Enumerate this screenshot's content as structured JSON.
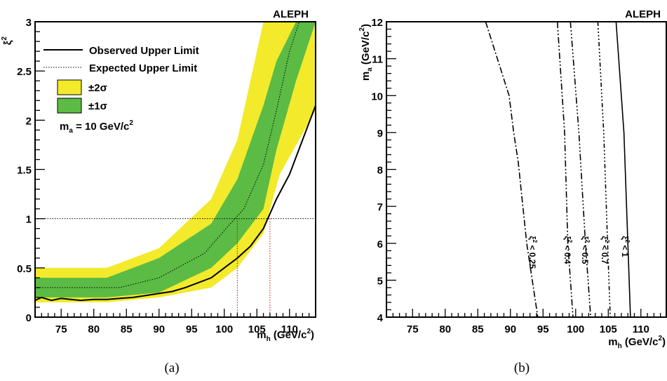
{
  "chart_data": [
    {
      "type": "area",
      "panel_caption": "(a)",
      "experiment": "ALEPH",
      "xlabel_main": "m",
      "xlabel_sub": "h",
      "xlabel_tail": " (GeV/c",
      "xlabel_sup": "2",
      "xlabel_close": ")",
      "ylabel_main": "ξ",
      "ylabel_sup": "2",
      "xlim": [
        71,
        114
      ],
      "ylim": [
        0,
        3
      ],
      "xticks": [
        75,
        80,
        85,
        90,
        95,
        100,
        105,
        110
      ],
      "yticks": [
        0,
        0.5,
        1,
        1.5,
        2,
        2.5,
        3
      ],
      "ytick_labels": [
        "0",
        "0.5",
        "1",
        "1.5",
        "2",
        "2.5",
        "3"
      ],
      "legend": {
        "observed": "Observed Upper Limit",
        "expected": "Expected Upper Limit",
        "two_sigma": "±2σ",
        "one_sigma": "±1σ",
        "mass_note_main": "m",
        "mass_note_sub": "a",
        "mass_note_tail": " = 10 GeV/c",
        "mass_note_sup": "2"
      },
      "colors": {
        "two_sigma": "#f2ea2b",
        "one_sigma": "#5bbb45",
        "observed": "#000000",
        "expected": "#000000",
        "reference": "#cc0000"
      },
      "band_2sigma": {
        "x": [
          71,
          82,
          90,
          98,
          102,
          106,
          108.5,
          114
        ],
        "upper": [
          0.5,
          0.5,
          0.7,
          1.2,
          1.8,
          3.0,
          3.0,
          3.0
        ],
        "lower": [
          0.15,
          0.15,
          0.2,
          0.3,
          0.5,
          0.85,
          1.45,
          2.1
        ]
      },
      "band_1sigma": {
        "x": [
          71,
          82,
          90,
          98,
          102,
          106,
          108,
          111,
          114
        ],
        "upper": [
          0.4,
          0.4,
          0.6,
          0.95,
          1.4,
          2.15,
          2.6,
          3.0,
          3.0
        ],
        "lower": [
          0.2,
          0.2,
          0.25,
          0.5,
          0.75,
          1.1,
          1.7,
          2.4,
          3.0
        ]
      },
      "expected_curve": {
        "x": [
          71,
          84,
          90,
          97,
          100,
          103,
          106,
          108,
          110,
          111.5
        ],
        "y": [
          0.3,
          0.3,
          0.4,
          0.65,
          0.88,
          1.1,
          1.55,
          2.1,
          2.7,
          3.0
        ]
      },
      "observed_curve": {
        "x": [
          71,
          72,
          73.5,
          75,
          76.5,
          78,
          80,
          82,
          84,
          86,
          88,
          90,
          92,
          94,
          96,
          98,
          100,
          102,
          104,
          106,
          108,
          110,
          112,
          114
        ],
        "y": [
          0.17,
          0.2,
          0.17,
          0.19,
          0.18,
          0.17,
          0.18,
          0.18,
          0.19,
          0.2,
          0.22,
          0.24,
          0.26,
          0.3,
          0.35,
          0.4,
          0.5,
          0.6,
          0.72,
          0.9,
          1.2,
          1.45,
          1.8,
          2.15
        ]
      },
      "reference_line_y": 1,
      "reference_drops_x": [
        102,
        107
      ]
    },
    {
      "type": "line",
      "panel_caption": "(b)",
      "experiment": "ALEPH",
      "xlabel_main": "m",
      "xlabel_sub": "h",
      "xlabel_tail": " (GeV/c",
      "xlabel_sup": "2",
      "xlabel_close": ")",
      "ylabel_main": "m",
      "ylabel_sub": "a",
      "ylabel_tail": " (GeV/c",
      "ylabel_sup": "2",
      "ylabel_close": ")",
      "xlim": [
        71,
        114
      ],
      "ylim": [
        4,
        12
      ],
      "xticks": [
        75,
        80,
        85,
        90,
        95,
        100,
        105,
        110
      ],
      "yticks": [
        4,
        5,
        6,
        7,
        8,
        9,
        10,
        11,
        12
      ],
      "series": [
        {
          "name": "ξ² < 0.25",
          "label_prefix": "ξ",
          "label_sup": "2",
          "label_tail": " < 0.25",
          "dash": "dashdot",
          "x": [
            86.2,
            89.8,
            90.5,
            91.2,
            92.5,
            94.2
          ],
          "m_a": [
            12,
            10,
            9,
            8.2,
            6,
            4
          ]
        },
        {
          "name": "ξ² < 0.4",
          "label_prefix": "ξ",
          "label_sup": "2",
          "label_tail": " < 0.4",
          "dash": "dashdotdot",
          "x": [
            97.2,
            98.3,
            98.8,
            99.6
          ],
          "m_a": [
            12,
            9,
            6,
            4
          ]
        },
        {
          "name": "ξ² < 0.5",
          "label_prefix": "ξ",
          "label_sup": "2",
          "label_tail": " < 0.5",
          "dash": "dashdotdotdot",
          "x": [
            99.2,
            100.5,
            101.5,
            102.3
          ],
          "m_a": [
            12,
            9,
            6,
            4
          ]
        },
        {
          "name": "ξ² < 0.7",
          "label_prefix": "ξ",
          "label_sup": "2",
          "label_tail": " < 0.7",
          "dash": "dashdotdotdotdot",
          "x": [
            103.4,
            104.3,
            104.9,
            105.3
          ],
          "m_a": [
            12,
            9,
            6,
            4
          ]
        },
        {
          "name": "ξ² < 1",
          "label_prefix": "ξ",
          "label_sup": "2",
          "label_tail": " < 1",
          "dash": "solid",
          "x": [
            106.2,
            107.4,
            108.0,
            108.4
          ],
          "m_a": [
            12,
            9,
            6,
            4
          ]
        }
      ]
    }
  ]
}
